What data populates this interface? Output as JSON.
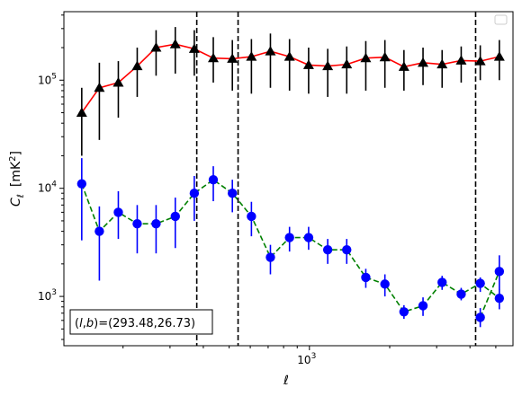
{
  "chart_data": {
    "type": "scatter",
    "xlabel": "ℓ",
    "ylabel_main": "C",
    "ylabel_sub": "ℓ",
    "ylabel_units": "[mK",
    "ylabel_units_sup": "2",
    "ylabel_units_close": "]",
    "x_scale": "log",
    "y_scale": "log",
    "xlim": [
      120,
      5800
    ],
    "ylim": [
      350,
      430000
    ],
    "x_tick_major": [
      {
        "value": 1000,
        "base": "10",
        "exp": "3"
      }
    ],
    "y_tick_major": [
      {
        "value": 1000,
        "base": "10",
        "exp": "3"
      },
      {
        "value": 10000,
        "base": "10",
        "exp": "4"
      },
      {
        "value": 100000,
        "base": "10",
        "exp": "5"
      }
    ],
    "vlines": [
      378,
      540,
      4200
    ],
    "annotation": "(l, b)=(293.48,26.73)",
    "annotation_parts": {
      "open": "(",
      "l": "l",
      "comma": ",",
      "b": "b",
      "close": ")",
      "rest": "=(293.48,26.73)"
    },
    "legend": "empty box, top-right",
    "grid": false,
    "series": [
      {
        "marker": "triangle",
        "line_color": "#ff0000",
        "marker_color": "#000000",
        "linestyle": "solid",
        "x": [
          140,
          163,
          192,
          226,
          266,
          314,
          370,
          436,
          514,
          606,
          714,
          842,
          993,
          1171,
          1380,
          1627,
          1919,
          2262,
          2667,
          3145,
          3708,
          4372,
          5155
        ],
        "y": [
          50000,
          85000,
          95000,
          135000,
          200000,
          215000,
          195000,
          160000,
          158000,
          165000,
          185000,
          165000,
          138000,
          135000,
          140000,
          160000,
          163000,
          133000,
          145000,
          140000,
          152000,
          150000,
          165000
        ],
        "yerr_low": [
          20000,
          28000,
          45000,
          70000,
          110000,
          115000,
          110000,
          95000,
          80000,
          75000,
          85000,
          80000,
          75000,
          70000,
          75000,
          80000,
          85000,
          80000,
          90000,
          85000,
          95000,
          100000,
          100000
        ],
        "yerr_high": [
          85000,
          145000,
          150000,
          200000,
          290000,
          310000,
          290000,
          250000,
          235000,
          240000,
          270000,
          240000,
          200000,
          195000,
          205000,
          230000,
          235000,
          190000,
          200000,
          190000,
          205000,
          210000,
          235000
        ]
      },
      {
        "marker": "circle",
        "line_color": "#008000",
        "marker_color": "#0000ff",
        "linestyle": "dashed",
        "x": [
          140,
          163,
          192,
          226,
          266,
          314,
          370,
          436,
          514,
          606,
          714,
          842,
          993,
          1171,
          1380,
          1627,
          1919,
          2262,
          2667,
          3145,
          3708,
          4372,
          5155
        ],
        "y": [
          11000,
          4000,
          6000,
          4700,
          4700,
          5500,
          9000,
          12000,
          9000,
          5500,
          2300,
          3500,
          3500,
          2700,
          2700,
          1500,
          1300,
          720,
          820,
          1350,
          1050,
          1320,
          960
        ],
        "yerr_low": [
          3300,
          1400,
          3400,
          2500,
          2500,
          2800,
          5000,
          7600,
          6000,
          3600,
          1600,
          2600,
          2700,
          2000,
          2000,
          1200,
          1000,
          620,
          660,
          1150,
          920,
          1100,
          760
        ],
        "yerr_high": [
          19000,
          6800,
          9400,
          7000,
          7000,
          8200,
          13000,
          16000,
          12000,
          7500,
          3000,
          4400,
          4400,
          3400,
          3400,
          1800,
          1600,
          830,
          980,
          1550,
          1200,
          1500,
          1160
        ]
      },
      {
        "marker": "circle",
        "line_color": "#008000",
        "marker_color": "#0000ff",
        "linestyle": "dashed",
        "x": [
          4372,
          5155
        ],
        "y": [
          640,
          1700
        ],
        "yerr_low": [
          520,
          1150
        ],
        "yerr_high": [
          780,
          2400
        ]
      }
    ]
  }
}
